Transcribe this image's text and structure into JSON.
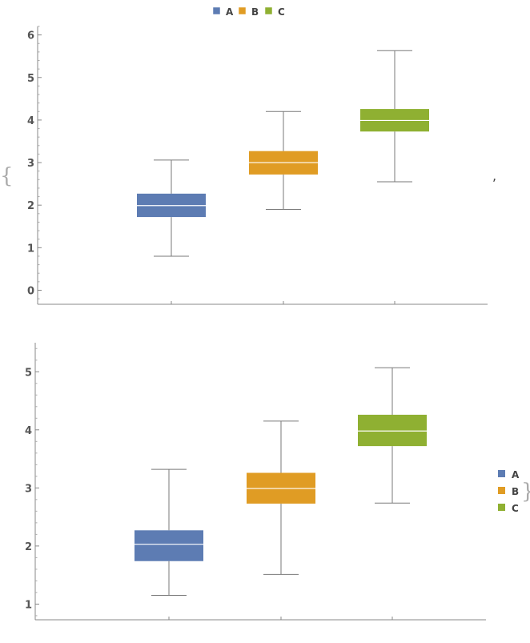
{
  "list_delimiters": {
    "open": "{",
    "separator": ",",
    "close": "}"
  },
  "colors": {
    "A": "#5d7cb3",
    "B": "#e09c24",
    "C": "#8fb032"
  },
  "chart_data": [
    {
      "type": "box",
      "legend": {
        "placement": "top",
        "entries": [
          "A",
          "B",
          "C"
        ]
      },
      "categories": [
        "A",
        "B",
        "C"
      ],
      "series": [
        {
          "name": "A",
          "min": 0.8,
          "q1": 1.72,
          "median": 1.99,
          "q3": 2.27,
          "max": 3.06
        },
        {
          "name": "B",
          "min": 1.9,
          "q1": 2.72,
          "median": 3.0,
          "q3": 3.27,
          "max": 4.2
        },
        {
          "name": "C",
          "min": 2.55,
          "q1": 3.73,
          "median": 3.99,
          "q3": 4.26,
          "max": 5.63
        }
      ],
      "ylim": [
        -0.33,
        6.2
      ],
      "yticks": [
        0,
        1,
        2,
        3,
        4,
        5,
        6
      ],
      "grid": false
    },
    {
      "type": "box",
      "legend": {
        "placement": "right",
        "entries": [
          "A",
          "B",
          "C"
        ]
      },
      "categories": [
        "A",
        "B",
        "C"
      ],
      "series": [
        {
          "name": "A",
          "min": 1.15,
          "q1": 1.74,
          "median": 2.03,
          "q3": 2.27,
          "max": 3.32
        },
        {
          "name": "B",
          "min": 1.51,
          "q1": 2.73,
          "median": 2.99,
          "q3": 3.26,
          "max": 4.15
        },
        {
          "name": "C",
          "min": 2.74,
          "q1": 3.72,
          "median": 3.98,
          "q3": 4.26,
          "max": 5.07
        }
      ],
      "ylim": [
        0.73,
        5.5
      ],
      "yticks": [
        1,
        2,
        3,
        4,
        5
      ],
      "grid": false
    }
  ]
}
